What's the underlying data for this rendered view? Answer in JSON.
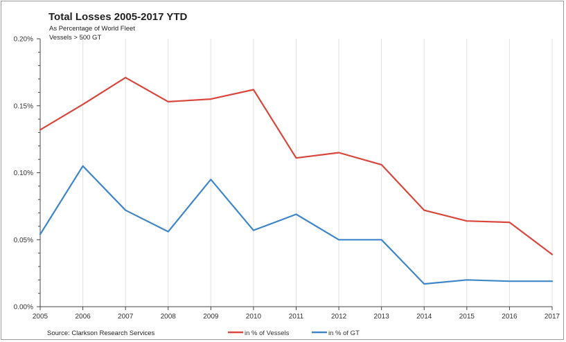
{
  "chart_data": {
    "type": "line",
    "title": "Total Losses 2005-2017 YTD",
    "subtitle_lines": [
      "As Percentage of World Fleet",
      "Vessels > 500 GT"
    ],
    "x": [
      "2005",
      "2006",
      "2007",
      "2008",
      "2009",
      "2010",
      "2011",
      "2012",
      "2013",
      "2014",
      "2015",
      "2016",
      "2017"
    ],
    "y_ticks": [
      "0.00%",
      "0.05%",
      "0.10%",
      "0.15%",
      "0.20%"
    ],
    "ylim": [
      0,
      0.2
    ],
    "series": [
      {
        "name": "in % of Vessels",
        "color": "#d9463c",
        "values": [
          0.132,
          0.151,
          0.171,
          0.153,
          0.155,
          0.162,
          0.111,
          0.115,
          0.106,
          0.072,
          0.064,
          0.063,
          0.039
        ]
      },
      {
        "name": "in % of GT",
        "color": "#3e86c8",
        "values": [
          0.054,
          0.105,
          0.072,
          0.056,
          0.095,
          0.057,
          0.069,
          0.05,
          0.05,
          0.017,
          0.02,
          0.019,
          0.019
        ]
      }
    ],
    "grid": "vertical",
    "legend_position": "bottom-center",
    "source": "Source: Clarkson Research Services"
  }
}
